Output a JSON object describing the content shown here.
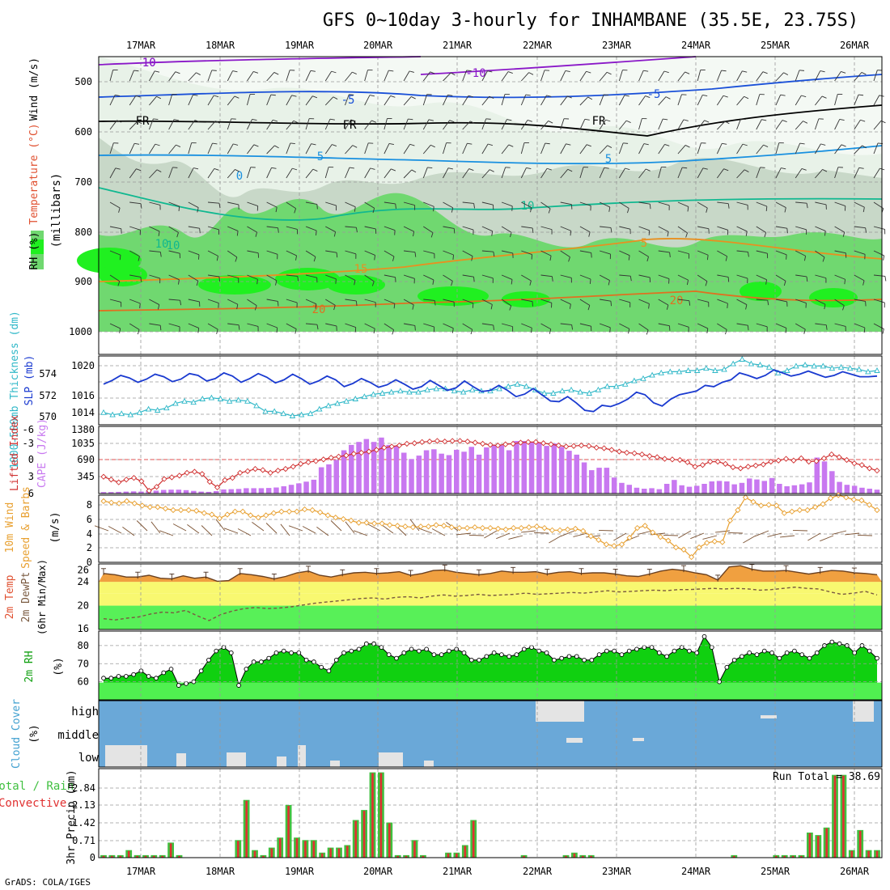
{
  "title": "GFS 0~10day 3-hourly for INHAMBANE (35.5E, 23.75S)",
  "footer": "GrADS: COLA/IGES",
  "dates": [
    "17MAR",
    "18MAR",
    "19MAR",
    "20MAR",
    "21MAR",
    "22MAR",
    "23MAR",
    "24MAR",
    "25MAR",
    "26MAR"
  ],
  "colors": {
    "rh_light": "#e8f2e8",
    "rh_mid": "#c8d8c8",
    "rh_dark": "#b0c4b0",
    "rh_green": "#70d870",
    "rh_bright": "#20f020",
    "slp": "#1a3ad0",
    "thick": "#30b8c8",
    "cape": "#c878f0",
    "li": "#d03030",
    "wind": "#e8a030",
    "temp_fill": "#f0a040",
    "band_orange": "#f8d060",
    "band_yellow": "#f8f870",
    "band_green": "#58f058",
    "rh2m_fill": "#10d010",
    "cloud": "#6aa8d8",
    "precip_total": "#40c040",
    "precip_conv": "#e03030"
  },
  "panels": {
    "upper": {
      "ylabel_parts": [
        "Wind (m/s)",
        "Temperature (°C)",
        "RH (%)"
      ],
      "ylabel_mb": "(millibars)",
      "yticks": [
        "500",
        "600",
        "700",
        "800",
        "900",
        "1000"
      ],
      "contour_labels": [
        "-10",
        "-10",
        "-5",
        "-5",
        "FR",
        "FR",
        "FR",
        "5",
        "5",
        "0",
        "10",
        "10",
        "15",
        "20",
        "20",
        "5",
        "10",
        "-10"
      ]
    },
    "slp": {
      "ylabel_left": "1000-500mb Thickness (dm)",
      "ylabel_right": "SLP (mb)",
      "yticks_left": [
        "574",
        "572",
        "570"
      ],
      "yticks_right": [
        "1020",
        "1016",
        "1014"
      ]
    },
    "cape": {
      "ylabel_left": "Lifted Index",
      "ylabel_right": "CAPE (J/kg)",
      "yticks_left": [
        "-6",
        "-3",
        "0",
        "3",
        "6"
      ],
      "yticks_right": [
        "1380",
        "1035",
        "690",
        "345"
      ]
    },
    "wind": {
      "ylabel_a": "10m Wind",
      "ylabel_b": "Speed & Barbs",
      "ylabel_unit": "(m/s)",
      "yticks": [
        "8",
        "6",
        "4",
        "2",
        "0"
      ]
    },
    "temp": {
      "ylabel_a": "2m Temp",
      "ylabel_b": "2m DewPt",
      "ylabel_c": "(6hr Min/Max)",
      "yticks": [
        "26",
        "24",
        "20",
        "16"
      ]
    },
    "rh2m": {
      "ylabel_a": "2m RH",
      "ylabel_unit": "(%)",
      "yticks": [
        "80",
        "70",
        "60"
      ]
    },
    "cloud": {
      "ylabel_a": "Cloud Cover",
      "ylabel_unit": "(%)",
      "levels": [
        "high",
        "middle",
        "low"
      ]
    },
    "precip": {
      "ylabel_a": "Total / Rain",
      "ylabel_b": "Convective",
      "ylabel_c": "3hr Precip (mm)",
      "run_total_label": "Run Total = 38.69",
      "yticks": [
        "2.84",
        "2.13",
        "1.42",
        "0.71",
        "0"
      ]
    }
  },
  "chart_data": [
    {
      "type": "line",
      "name": "SLP (mb)",
      "ylim": [
        1012,
        1022
      ],
      "values": [
        1018,
        1018.6,
        1019.4,
        1019,
        1018.3,
        1018.8,
        1019.6,
        1019.2,
        1018.4,
        1018.8,
        1019.7,
        1019.4,
        1018.5,
        1018.9,
        1019.8,
        1019.3,
        1018.3,
        1018.9,
        1019.7,
        1019.1,
        1018.2,
        1018.7,
        1019.6,
        1018.9,
        1018,
        1018.5,
        1019.3,
        1018.7,
        1017.6,
        1018.1,
        1018.9,
        1018.3,
        1017.5,
        1017.9,
        1018.7,
        1018,
        1017.2,
        1017.6,
        1018.6,
        1017.8,
        1017,
        1017.4,
        1018.5,
        1017.6,
        1016.8,
        1017,
        1017.8,
        1017,
        1016,
        1016.4,
        1017.3,
        1016.3,
        1015.3,
        1015.2,
        1016,
        1015,
        1013.8,
        1013.6,
        1014.6,
        1014.4,
        1014.9,
        1015.6,
        1016.7,
        1016.3,
        1015,
        1014.5,
        1015.6,
        1016.3,
        1016.6,
        1016.9,
        1017.8,
        1017.6,
        1018.3,
        1018.7,
        1019.8,
        1019.4,
        1018.9,
        1019.4,
        1020.3,
        1019.8,
        1019.3,
        1019.6,
        1020.1,
        1019.6,
        1019.1,
        1019.4,
        1020,
        1019.6,
        1019.2,
        1019.2,
        1019.3
      ]
    },
    {
      "type": "line",
      "name": "1000-500mb Thickness (dm)",
      "ylim": [
        569.5,
        575
      ],
      "values": [
        570.3,
        570.1,
        570.2,
        570.1,
        570.3,
        570.6,
        570.5,
        570.7,
        571.1,
        571.3,
        571.2,
        571.5,
        571.6,
        571.5,
        571.3,
        571.4,
        571.3,
        570.9,
        570.4,
        570.4,
        570.2,
        570,
        570.1,
        570.2,
        570.6,
        570.9,
        571.1,
        571.3,
        571.5,
        571.7,
        571.9,
        572,
        572.1,
        572.2,
        572.1,
        572.1,
        572.3,
        572.4,
        572.4,
        572.2,
        572.1,
        572.3,
        572.2,
        572.2,
        572.4,
        572.6,
        572.8,
        572.6,
        572.3,
        572,
        572,
        572.2,
        572.3,
        572.1,
        572,
        572.3,
        572.6,
        572.6,
        572.8,
        573.1,
        573.3,
        573.6,
        573.8,
        573.9,
        573.9,
        574,
        574,
        574.2,
        574,
        574.1,
        574.6,
        575,
        574.6,
        574.5,
        574.3,
        573.8,
        574,
        574.4,
        574.5,
        574.4,
        574.4,
        574.2,
        574.3,
        574.2,
        574.1,
        573.9,
        574
      ]
    },
    {
      "type": "bar",
      "name": "CAPE (J/kg)",
      "ylim": [
        0,
        1380
      ],
      "values": [
        30,
        30,
        35,
        40,
        45,
        40,
        55,
        60,
        75,
        80,
        80,
        70,
        55,
        40,
        35,
        50,
        85,
        90,
        95,
        110,
        110,
        110,
        115,
        125,
        150,
        180,
        210,
        245,
        285,
        540,
        600,
        690,
        890,
        1000,
        1060,
        1120,
        1060,
        1150,
        1000,
        980,
        840,
        710,
        780,
        890,
        910,
        820,
        790,
        900,
        860,
        960,
        800,
        950,
        1000,
        990,
        890,
        1080,
        1080,
        1060,
        1050,
        980,
        1030,
        960,
        880,
        800,
        640,
        480,
        530,
        530,
        330,
        220,
        180,
        120,
        100,
        110,
        90,
        200,
        280,
        170,
        140,
        160,
        200,
        250,
        260,
        250,
        190,
        220,
        310,
        290,
        260,
        320,
        200,
        150,
        170,
        190,
        230,
        740,
        660,
        460,
        240,
        180,
        160,
        120,
        100,
        80
      ]
    },
    {
      "type": "line",
      "name": "Lifted Index",
      "ylim": [
        6,
        -6
      ],
      "values": [
        3,
        3.5,
        4,
        3.5,
        3.2,
        3.8,
        5.5,
        4.8,
        3.4,
        3.1,
        2.8,
        2.3,
        2.1,
        2.5,
        3.9,
        4.9,
        3.6,
        3.2,
        2.3,
        2,
        1.6,
        1.8,
        2.3,
        1.9,
        1.6,
        1.2,
        0.7,
        0.4,
        0.2,
        -0.1,
        -0.4,
        -0.6,
        -0.8,
        -1.1,
        -1.3,
        -1.5,
        -1.8,
        -2.2,
        -2.4,
        -2.6,
        -2.9,
        -3,
        -3.2,
        -3.3,
        -3.4,
        -3.3,
        -3.4,
        -3.4,
        -3.3,
        -3.1,
        -2.9,
        -2.7,
        -2.6,
        -2.8,
        -2.9,
        -3.1,
        -3.2,
        -3.2,
        -3,
        -2.8,
        -2.6,
        -2.4,
        -2.5,
        -2.6,
        -2.5,
        -2.2,
        -2.1,
        -1.8,
        -1.5,
        -1.3,
        -1.2,
        -1,
        -0.7,
        -0.5,
        -0.2,
        -0.1,
        0,
        0.4,
        1.2,
        0.9,
        0.3,
        0.3,
        0.7,
        1.3,
        1.5,
        1.2,
        1,
        0.8,
        0.3,
        0.1,
        -0.2,
        0.1,
        -0.3,
        0.3,
        0.2,
        -0.3,
        -1,
        -0.5,
        0,
        0.6,
        0.9,
        1.5,
        1.9
      ]
    },
    {
      "type": "line",
      "name": "10m Wind Speed (m/s)",
      "ylim": [
        0,
        9
      ],
      "values": [
        8.2,
        8,
        7.9,
        8.2,
        7.9,
        7.6,
        7.4,
        7.4,
        7.2,
        7,
        7,
        7,
        6.9,
        6.6,
        6.4,
        5.9,
        6.4,
        6.8,
        6.8,
        6.3,
        6,
        6.3,
        6.6,
        6.8,
        6.8,
        6.8,
        7.1,
        7,
        6.7,
        6.3,
        6,
        5.8,
        5.6,
        5.3,
        5.3,
        5.2,
        5.2,
        5,
        4.9,
        4.8,
        4.7,
        4.8,
        4.8,
        5,
        4.9,
        4.7,
        4.6,
        4.6,
        4.7,
        4.6,
        4.6,
        4.5,
        4.4,
        4.6,
        4.6,
        4.7,
        4.8,
        4.6,
        4.3,
        4.3,
        4.4,
        4.5,
        4.2,
        3.5,
        3,
        2.4,
        2.2,
        2.4,
        3.3,
        4.6,
        4.9,
        4,
        3.4,
        2.9,
        2,
        1.7,
        0.7,
        2,
        2.6,
        2.8,
        2.7,
        5.6,
        7,
        8.7,
        8.1,
        7.6,
        7.7,
        7.6,
        6.6,
        6.8,
        7,
        7,
        7.4,
        7.8,
        8.6,
        9,
        8.7,
        8.4,
        8.3,
        7.7,
        7
      ]
    },
    {
      "type": "area",
      "name": "2m Temp (6hr Min/Max)",
      "ylim": [
        16,
        27
      ],
      "values": [
        25.4,
        25.2,
        24.8,
        24.8,
        25.1,
        24.6,
        24.5,
        25,
        24.6,
        24.8,
        24.1,
        24.2,
        25.4,
        25.2,
        24.9,
        24.5,
        24.9,
        25.5,
        25.8,
        25.1,
        24.8,
        25.2,
        25.5,
        25.6,
        25.4,
        25.5,
        25.7,
        25.1,
        25.4,
        25.9,
        26,
        25.6,
        25.4,
        25.2,
        25.4,
        25.8,
        25.6,
        25.6,
        25.7,
        25.3,
        25.6,
        25.7,
        25.4,
        25.5,
        25.5,
        25.3,
        25,
        24.9,
        25.3,
        25.8,
        26.1,
        25.9,
        25.5,
        25.2,
        24.3,
        26.5,
        26.7,
        26.1,
        25.8,
        25.8,
        25.9,
        25.6,
        25.3,
        25.6,
        25.9,
        25.8,
        25.5,
        25.4,
        25.2
      ]
    },
    {
      "type": "line",
      "name": "2m DewPt",
      "ylim": [
        16,
        27
      ],
      "values": [
        17.8,
        17.6,
        17.9,
        18.1,
        18.6,
        18.9,
        18.8,
        19.2,
        18.3,
        17.5,
        18.5,
        19.1,
        19.5,
        19.7,
        19.5,
        19.6,
        19.8,
        20.1,
        20.4,
        20.6,
        20.8,
        21,
        21.2,
        21.3,
        21.1,
        21.4,
        21.5,
        21.3,
        21.6,
        21.8,
        21.6,
        21.7,
        21.9,
        21.7,
        21.8,
        21.9,
        22.1,
        21.9,
        22,
        22.1,
        22.2,
        22.1,
        22.3,
        22.5,
        22.3,
        22.4,
        22.5,
        22.6,
        22.5,
        22.7,
        22.7,
        22.8,
        22.9,
        22.8,
        22.9,
        22.8,
        22.6,
        22.7,
        22.9,
        23.1,
        22.9,
        22.8,
        22.3,
        21.9,
        22.1,
        22.4,
        21.8
      ]
    },
    {
      "type": "area",
      "name": "2m RH (%)",
      "ylim": [
        50,
        88
      ],
      "values": [
        62,
        62,
        63,
        63,
        64,
        66,
        63,
        62,
        65,
        67,
        58,
        59,
        60,
        66,
        72,
        77,
        79,
        76,
        58,
        67,
        71,
        71,
        73,
        76,
        77,
        76,
        76,
        72,
        71,
        68,
        66,
        72,
        76,
        77,
        78,
        81,
        81,
        79,
        75,
        73,
        76,
        78,
        77,
        78,
        75,
        75,
        77,
        78,
        76,
        72,
        72,
        74,
        76,
        75,
        74,
        75,
        78,
        79,
        77,
        76,
        72,
        73,
        74,
        74,
        72,
        72,
        75,
        77,
        77,
        75,
        77,
        78,
        79,
        79,
        76,
        74,
        77,
        79,
        77,
        76,
        85,
        79,
        60,
        68,
        72,
        74,
        76,
        75,
        77,
        76,
        73,
        76,
        77,
        75,
        73,
        76,
        80,
        82,
        81,
        80,
        76,
        80,
        77,
        73
      ]
    }
  ]
}
